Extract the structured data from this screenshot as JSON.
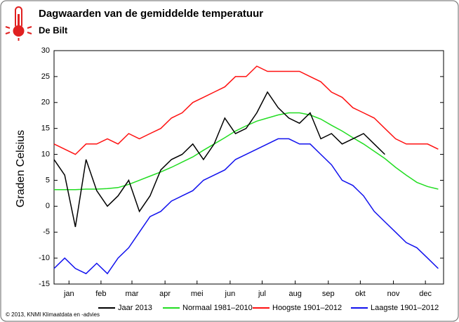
{
  "chart_data": {
    "type": "line",
    "title": "Dagwaarden van de gemiddelde temperatuur",
    "subtitle": "De Bilt",
    "ylabel": "Graden Celsius",
    "footer": "© 2013, KNMI Klimaatdata en -advies",
    "x": [
      1,
      11,
      21,
      31,
      41,
      51,
      61,
      71,
      81,
      91,
      101,
      111,
      121,
      131,
      141,
      151,
      161,
      171,
      181,
      191,
      201,
      211,
      221,
      231,
      241,
      251,
      261,
      271,
      281,
      291,
      301,
      311,
      321,
      331,
      341,
      351,
      361
    ],
    "xlim": [
      1,
      366
    ],
    "xticks": [
      {
        "value": 15,
        "label": "jan"
      },
      {
        "value": 45,
        "label": "feb"
      },
      {
        "value": 74,
        "label": "mar"
      },
      {
        "value": 105,
        "label": "apr"
      },
      {
        "value": 135,
        "label": "mei"
      },
      {
        "value": 166,
        "label": "jun"
      },
      {
        "value": 196,
        "label": "jul"
      },
      {
        "value": 227,
        "label": "aug"
      },
      {
        "value": 258,
        "label": "sep"
      },
      {
        "value": 288,
        "label": "okt"
      },
      {
        "value": 319,
        "label": "nov"
      },
      {
        "value": 349,
        "label": "dec"
      }
    ],
    "ylim": [
      -15,
      30
    ],
    "yticks": [
      -15,
      -10,
      -5,
      0,
      5,
      10,
      15,
      20,
      25,
      30
    ],
    "grid": false,
    "legend": "bottom",
    "series": [
      {
        "name": "Jaar 2013",
        "color": "#000000",
        "values": [
          9,
          6,
          -4,
          9,
          3,
          0,
          2,
          5,
          -1,
          2,
          7,
          9,
          10,
          12,
          9,
          12,
          17,
          14,
          15,
          18,
          22,
          19,
          17,
          16,
          18,
          13,
          14,
          12,
          13,
          14,
          12,
          10,
          null,
          null,
          null,
          null,
          null
        ]
      },
      {
        "name": "Normaal 1981–2010",
        "color": "#22dd22",
        "values": [
          3.2,
          3.2,
          3.2,
          3.3,
          3.3,
          3.4,
          3.6,
          4.2,
          5.0,
          5.8,
          6.6,
          7.5,
          8.5,
          9.5,
          10.8,
          12.0,
          13.2,
          14.5,
          15.5,
          16.4,
          17.0,
          17.6,
          18.0,
          18.0,
          17.6,
          16.8,
          15.6,
          14.5,
          13.2,
          12.0,
          10.6,
          9.2,
          7.5,
          6.0,
          4.6,
          3.8,
          3.3
        ]
      },
      {
        "name": "Hoogste 1901–2012",
        "color": "#ff1111",
        "values": [
          12,
          11,
          10,
          12,
          12,
          13,
          12,
          14,
          13,
          14,
          15,
          17,
          18,
          20,
          21,
          22,
          23,
          25,
          25,
          27,
          26,
          26,
          26,
          26,
          25,
          24,
          22,
          21,
          19,
          18,
          17,
          15,
          13,
          12,
          12,
          12,
          11
        ]
      },
      {
        "name": "Laagste 1901–2012",
        "color": "#1111ee",
        "values": [
          -12,
          -10,
          -12,
          -13,
          -11,
          -13,
          -10,
          -8,
          -5,
          -2,
          -1,
          1,
          2,
          3,
          5,
          6,
          7,
          9,
          10,
          11,
          12,
          13,
          13,
          12,
          12,
          10,
          8,
          5,
          4,
          2,
          -1,
          -3,
          -5,
          -7,
          -8,
          -10,
          -12
        ]
      }
    ]
  }
}
